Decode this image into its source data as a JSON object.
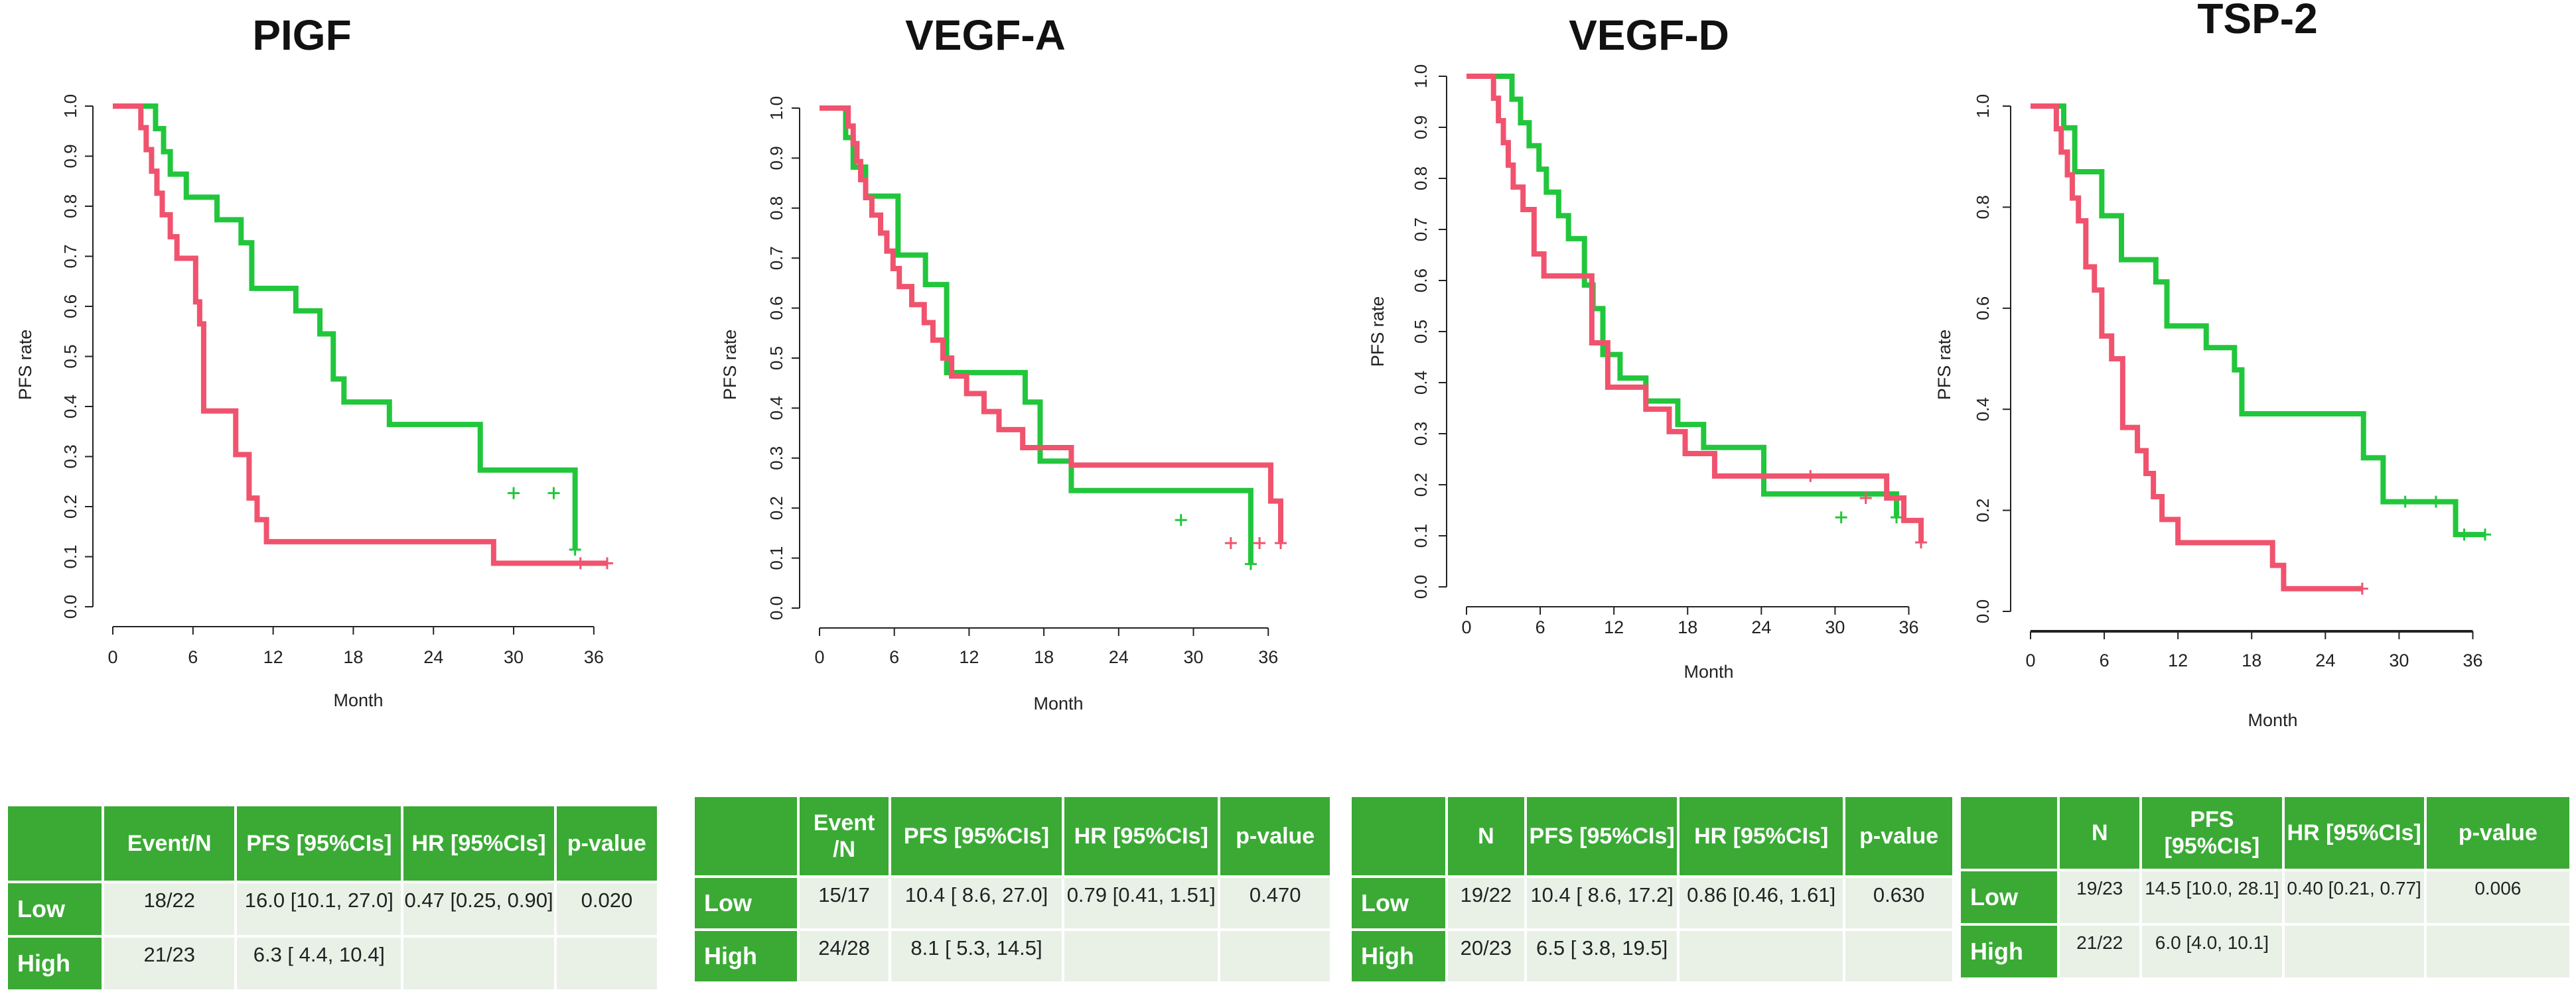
{
  "colors": {
    "low": "#22c63c",
    "high": "#f0536e",
    "table_header": "#3aaa35",
    "table_cell": "#e9f1e7"
  },
  "chart_data": [
    {
      "type": "line",
      "title": "PIGF",
      "xlabel": "Month",
      "ylabel": "PFS rate",
      "xlim": [
        0,
        37
      ],
      "ylim": [
        0,
        1
      ],
      "xticks": [
        "0",
        "6",
        "12",
        "18",
        "24",
        "30",
        "36"
      ],
      "yticks": [
        "0.0",
        "0.1",
        "0.2",
        "0.3",
        "0.4",
        "0.5",
        "0.6",
        "0.7",
        "0.8",
        "0.9",
        "1.0"
      ],
      "series": [
        {
          "name": "Low",
          "color": "#22c63c",
          "x": [
            0,
            3.2,
            3.8,
            4.3,
            5.5,
            7.8,
            9.6,
            10.4,
            13.7,
            15.5,
            16.5,
            17.3,
            20.7,
            27.5,
            34.6
          ],
          "y": [
            1.0,
            0.955,
            0.909,
            0.864,
            0.818,
            0.773,
            0.727,
            0.636,
            0.591,
            0.545,
            0.455,
            0.409,
            0.364,
            0.273,
            0.227
          ],
          "end_x": 34.6,
          "end_y": 0.114,
          "censor": [
            [
              30,
              0.227
            ],
            [
              33,
              0.227
            ],
            [
              34.6,
              0.114
            ]
          ]
        },
        {
          "name": "High",
          "color": "#f0536e",
          "x": [
            0,
            2.1,
            2.5,
            2.9,
            3.3,
            3.7,
            4.3,
            4.8,
            6.2,
            6.5,
            6.8,
            9.2,
            10.2,
            10.8,
            11.5,
            28.5
          ],
          "y": [
            1.0,
            0.957,
            0.913,
            0.87,
            0.826,
            0.783,
            0.739,
            0.696,
            0.609,
            0.565,
            0.391,
            0.304,
            0.217,
            0.174,
            0.13,
            0.087
          ],
          "end_x": 37,
          "end_y": 0.087,
          "censor": [
            [
              35,
              0.087
            ],
            [
              37,
              0.087
            ]
          ]
        }
      ]
    },
    {
      "type": "line",
      "title": "VEGF-A",
      "xlabel": "Month",
      "ylabel": "PFS rate",
      "xlim": [
        0,
        37
      ],
      "ylim": [
        0,
        1
      ],
      "xticks": [
        "0",
        "6",
        "12",
        "18",
        "24",
        "30",
        "36"
      ],
      "yticks": [
        "0.0",
        "0.1",
        "0.2",
        "0.3",
        "0.4",
        "0.5",
        "0.6",
        "0.7",
        "0.8",
        "0.9",
        "1.0"
      ],
      "series": [
        {
          "name": "Low",
          "color": "#22c63c",
          "x": [
            0,
            2.1,
            2.7,
            3.7,
            6.3,
            8.5,
            10.2,
            16.5,
            17.7,
            20.2,
            34.6
          ],
          "y": [
            1.0,
            0.941,
            0.882,
            0.824,
            0.706,
            0.647,
            0.471,
            0.412,
            0.294,
            0.235,
            0.176
          ],
          "end_x": 34.6,
          "end_y": 0.088,
          "censor": [
            [
              29,
              0.176
            ],
            [
              34.6,
              0.088
            ]
          ]
        },
        {
          "name": "High",
          "color": "#f0536e",
          "x": [
            0,
            2.3,
            2.7,
            3.0,
            3.3,
            3.7,
            4.2,
            4.9,
            5.4,
            5.9,
            6.4,
            7.4,
            8.4,
            9.1,
            9.9,
            10.6,
            11.8,
            13.2,
            14.4,
            16.3,
            20.2,
            36.2
          ],
          "y": [
            1.0,
            0.964,
            0.929,
            0.893,
            0.857,
            0.821,
            0.786,
            0.75,
            0.714,
            0.679,
            0.643,
            0.607,
            0.571,
            0.536,
            0.5,
            0.464,
            0.429,
            0.393,
            0.357,
            0.321,
            0.286,
            0.214
          ],
          "end_x": 37,
          "end_y": 0.13,
          "censor": [
            [
              33,
              0.13
            ],
            [
              35.3,
              0.13
            ],
            [
              37,
              0.13
            ]
          ]
        }
      ]
    },
    {
      "type": "line",
      "title": "VEGF-D",
      "xlabel": "Month",
      "ylabel": "PFS rate",
      "xlim": [
        0,
        37
      ],
      "ylim": [
        0,
        1
      ],
      "xticks": [
        "0",
        "6",
        "12",
        "18",
        "24",
        "30",
        "36"
      ],
      "yticks": [
        "0.0",
        "0.1",
        "0.2",
        "0.3",
        "0.4",
        "0.5",
        "0.6",
        "0.7",
        "0.8",
        "0.9",
        "1.0"
      ],
      "series": [
        {
          "name": "Low",
          "color": "#22c63c",
          "x": [
            0,
            3.7,
            4.4,
            5.1,
            5.9,
            6.5,
            7.5,
            8.3,
            9.6,
            10.3,
            11.1,
            12.5,
            14.6,
            17.2,
            19.3,
            24.2,
            35
          ],
          "y": [
            1.0,
            0.955,
            0.909,
            0.864,
            0.818,
            0.773,
            0.727,
            0.682,
            0.591,
            0.545,
            0.455,
            0.409,
            0.364,
            0.318,
            0.273,
            0.182,
            0.136
          ],
          "end_x": 35,
          "end_y": 0.136,
          "censor": [
            [
              30.5,
              0.136
            ],
            [
              35,
              0.136
            ]
          ]
        },
        {
          "name": "High",
          "color": "#f0536e",
          "x": [
            0,
            2.2,
            2.6,
            3.0,
            3.4,
            3.8,
            4.6,
            5.5,
            6.3,
            10.2,
            11.5,
            14.6,
            16.5,
            17.8,
            20.2,
            22.8,
            34.2,
            35.6
          ],
          "y": [
            1.0,
            0.957,
            0.913,
            0.87,
            0.826,
            0.783,
            0.739,
            0.652,
            0.609,
            0.478,
            0.391,
            0.348,
            0.304,
            0.261,
            0.217,
            0.217,
            0.174,
            0.13
          ],
          "end_x": 37,
          "end_y": 0.087,
          "censor": [
            [
              28,
              0.217
            ],
            [
              32.5,
              0.174
            ],
            [
              37,
              0.087
            ]
          ]
        }
      ]
    },
    {
      "type": "line",
      "title": "TSP-2",
      "xlabel": "Month",
      "ylabel": "PFS rate",
      "xlim": [
        0,
        37
      ],
      "ylim": [
        0,
        1
      ],
      "xticks": [
        "0",
        "6",
        "12",
        "18",
        "24",
        "30",
        "36"
      ],
      "yticks": [
        "0.0",
        "0.2",
        "0.4",
        "0.6",
        "0.8",
        "1.0"
      ],
      "series": [
        {
          "name": "Low",
          "color": "#22c63c",
          "x": [
            0,
            2.7,
            3.6,
            5.8,
            7.4,
            10.2,
            11.1,
            14.3,
            16.6,
            17.2,
            27.1,
            28.7,
            34.6
          ],
          "y": [
            1.0,
            0.957,
            0.87,
            0.783,
            0.696,
            0.652,
            0.565,
            0.522,
            0.478,
            0.391,
            0.304,
            0.217,
            0.152
          ],
          "end_x": 37,
          "end_y": 0.152,
          "censor": [
            [
              30.5,
              0.217
            ],
            [
              33,
              0.217
            ],
            [
              35.3,
              0.152
            ],
            [
              37,
              0.152
            ]
          ]
        },
        {
          "name": "High",
          "color": "#f0536e",
          "x": [
            0,
            2.1,
            2.5,
            3.0,
            3.4,
            3.9,
            4.5,
            5.2,
            5.8,
            6.6,
            7.5,
            8.7,
            9.4,
            10.0,
            10.7,
            12.0,
            19.7,
            20.6
          ],
          "y": [
            1.0,
            0.955,
            0.909,
            0.864,
            0.818,
            0.773,
            0.682,
            0.636,
            0.545,
            0.5,
            0.364,
            0.318,
            0.273,
            0.227,
            0.182,
            0.136,
            0.091,
            0.045
          ],
          "end_x": 27,
          "end_y": 0.045,
          "censor": [
            [
              27,
              0.045
            ]
          ]
        }
      ]
    }
  ],
  "tables": [
    {
      "headers": [
        "",
        "Event/N",
        "PFS [95%CIs]",
        "HR [95%CIs]",
        "p-value"
      ],
      "rows": [
        {
          "label": "Low",
          "cells": [
            "18/22",
            "16.0 [10.1, 27.0]",
            "0.47 [0.25, 0.90]",
            "0.020"
          ]
        },
        {
          "label": "High",
          "cells": [
            "21/23",
            "6.3 [ 4.4, 10.4]",
            "",
            ""
          ]
        }
      ]
    },
    {
      "headers": [
        "",
        "Event /N",
        "PFS [95%CIs]",
        "HR [95%CIs]",
        "p-value"
      ],
      "rows": [
        {
          "label": "Low",
          "cells": [
            "15/17",
            "10.4 [ 8.6, 27.0]",
            "0.79 [0.41, 1.51]",
            "0.470"
          ]
        },
        {
          "label": "High",
          "cells": [
            "24/28",
            "8.1 [ 5.3, 14.5]",
            "",
            ""
          ]
        }
      ]
    },
    {
      "headers": [
        "",
        "N",
        "PFS [95%CIs]",
        "HR [95%CIs]",
        "p-value"
      ],
      "rows": [
        {
          "label": "Low",
          "cells": [
            "19/22",
            "10.4 [ 8.6, 17.2]",
            "0.86 [0.46, 1.61]",
            "0.630"
          ]
        },
        {
          "label": "High",
          "cells": [
            "20/23",
            "6.5 [ 3.8, 19.5]",
            "",
            ""
          ]
        }
      ]
    },
    {
      "headers": [
        "",
        "N",
        "PFS [95%CIs]",
        "HR [95%CIs]",
        "p-value"
      ],
      "rows": [
        {
          "label": "Low",
          "cells": [
            "19/23",
            "14.5 [10.0, 28.1]",
            "0.40 [0.21, 0.77]",
            "0.006"
          ]
        },
        {
          "label": "High",
          "cells": [
            "21/22",
            "6.0 [4.0, 10.1]",
            "",
            ""
          ]
        }
      ]
    }
  ]
}
